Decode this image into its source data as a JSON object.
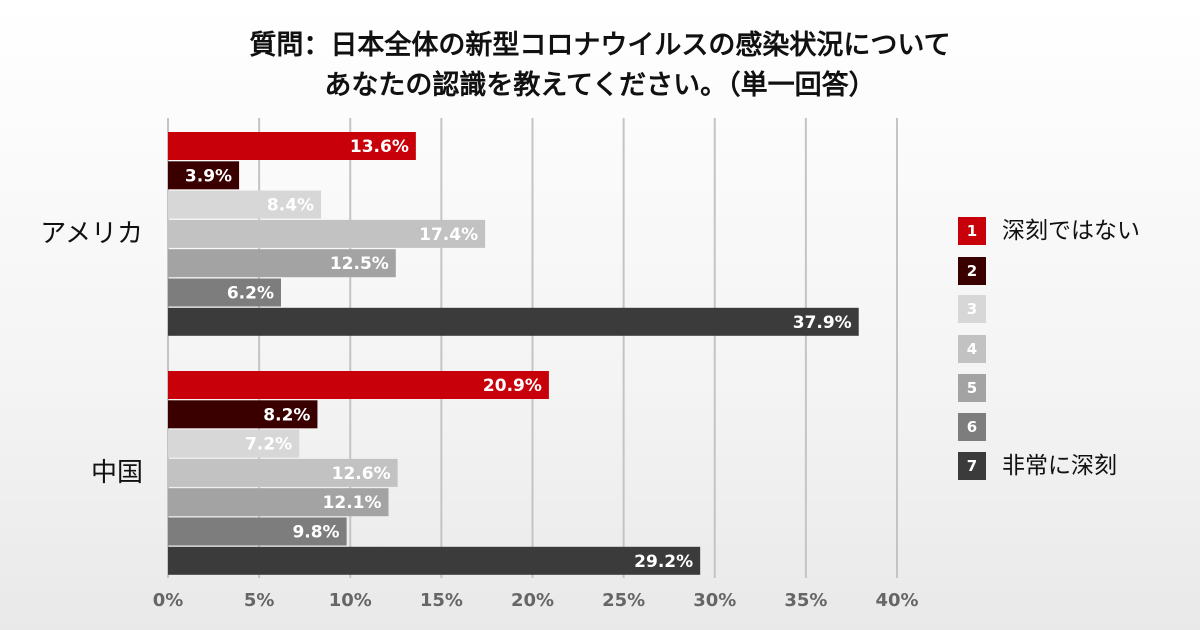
{
  "title": {
    "line1": "質問：日本全体の新型コロナウイルスの感染状況について",
    "line2": "あなたの認識を教えてください。（単一回答）"
  },
  "legend": [
    {
      "num": "1",
      "label": "深刻ではない",
      "color": "#c8000a"
    },
    {
      "num": "2",
      "label": "",
      "color": "#3a0000"
    },
    {
      "num": "3",
      "label": "",
      "color": "#d7d7d7"
    },
    {
      "num": "4",
      "label": "",
      "color": "#c2c2c2"
    },
    {
      "num": "5",
      "label": "",
      "color": "#a3a3a3"
    },
    {
      "num": "6",
      "label": "",
      "color": "#7d7d7d"
    },
    {
      "num": "7",
      "label": "非常に深刻",
      "color": "#3b3b3b"
    }
  ],
  "chart_data": {
    "type": "bar",
    "orientation": "horizontal",
    "categories": [
      "アメリカ",
      "中国"
    ],
    "series": [
      {
        "name": "1",
        "values": [
          13.6,
          20.9
        ],
        "color": "#c8000a",
        "labels": [
          "13.6%",
          "20.9%"
        ]
      },
      {
        "name": "2",
        "values": [
          3.9,
          8.2
        ],
        "color": "#3a0000",
        "labels": [
          "3.9%",
          "8.2%"
        ]
      },
      {
        "name": "3",
        "values": [
          8.4,
          7.2
        ],
        "color": "#d7d7d7",
        "labels": [
          "8.4%",
          "7.2%"
        ]
      },
      {
        "name": "4",
        "values": [
          17.4,
          12.6
        ],
        "color": "#c2c2c2",
        "labels": [
          "17.4%",
          "12.6%"
        ]
      },
      {
        "name": "5",
        "values": [
          12.5,
          12.1
        ],
        "color": "#a3a3a3",
        "labels": [
          "12.5%",
          "12.1%"
        ]
      },
      {
        "name": "6",
        "values": [
          6.2,
          9.8
        ],
        "color": "#7d7d7d",
        "labels": [
          "6.2%",
          "9.8%"
        ]
      },
      {
        "name": "7",
        "values": [
          37.9,
          29.2
        ],
        "color": "#3b3b3b",
        "labels": [
          "37.9%",
          "29.2%"
        ]
      }
    ],
    "xlim": [
      0,
      40
    ],
    "xticks": [
      0,
      5,
      10,
      15,
      20,
      25,
      30,
      35,
      40
    ],
    "xtick_labels": [
      "0%",
      "5%",
      "10%",
      "15%",
      "20%",
      "25%",
      "30%",
      "35%",
      "40%"
    ],
    "grid": true,
    "legend_position": "right"
  }
}
